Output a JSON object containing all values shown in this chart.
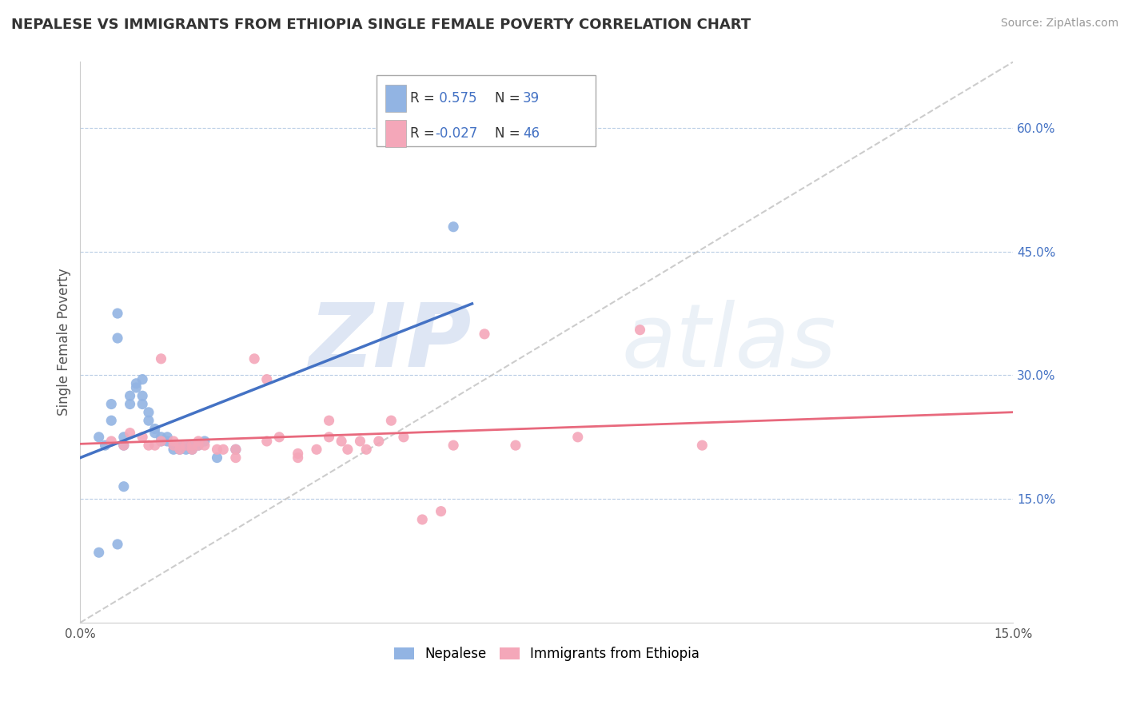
{
  "title": "NEPALESE VS IMMIGRANTS FROM ETHIOPIA SINGLE FEMALE POVERTY CORRELATION CHART",
  "source": "Source: ZipAtlas.com",
  "ylabel": "Single Female Poverty",
  "x_min": 0.0,
  "x_max": 0.15,
  "y_min": 0.0,
  "y_max": 0.68,
  "x_ticks": [
    0.0,
    0.03,
    0.06,
    0.09,
    0.12,
    0.15
  ],
  "x_tick_labels": [
    "0.0%",
    "",
    "",
    "",
    "",
    "15.0%"
  ],
  "y_tick_labels_right": [
    "15.0%",
    "30.0%",
    "45.0%",
    "60.0%"
  ],
  "y_tick_positions_right": [
    0.15,
    0.3,
    0.45,
    0.6
  ],
  "nepalese_R": "0.575",
  "nepalese_N": 39,
  "ethiopia_R": "-0.027",
  "ethiopia_N": 46,
  "nepalese_color": "#92b4e3",
  "ethiopia_color": "#f4a7b9",
  "nepalese_line_color": "#4472c4",
  "ethiopia_line_color": "#e8697d",
  "nepalese_points": [
    [
      0.003,
      0.225
    ],
    [
      0.004,
      0.215
    ],
    [
      0.005,
      0.265
    ],
    [
      0.005,
      0.245
    ],
    [
      0.006,
      0.375
    ],
    [
      0.006,
      0.345
    ],
    [
      0.007,
      0.215
    ],
    [
      0.007,
      0.225
    ],
    [
      0.008,
      0.275
    ],
    [
      0.008,
      0.265
    ],
    [
      0.009,
      0.285
    ],
    [
      0.009,
      0.29
    ],
    [
      0.01,
      0.295
    ],
    [
      0.01,
      0.275
    ],
    [
      0.01,
      0.265
    ],
    [
      0.011,
      0.255
    ],
    [
      0.011,
      0.245
    ],
    [
      0.012,
      0.235
    ],
    [
      0.012,
      0.23
    ],
    [
      0.013,
      0.225
    ],
    [
      0.013,
      0.22
    ],
    [
      0.014,
      0.225
    ],
    [
      0.014,
      0.22
    ],
    [
      0.015,
      0.215
    ],
    [
      0.015,
      0.21
    ],
    [
      0.016,
      0.215
    ],
    [
      0.016,
      0.21
    ],
    [
      0.017,
      0.215
    ],
    [
      0.017,
      0.21
    ],
    [
      0.018,
      0.215
    ],
    [
      0.018,
      0.21
    ],
    [
      0.019,
      0.215
    ],
    [
      0.02,
      0.22
    ],
    [
      0.022,
      0.2
    ],
    [
      0.025,
      0.21
    ],
    [
      0.006,
      0.095
    ],
    [
      0.007,
      0.165
    ],
    [
      0.06,
      0.48
    ],
    [
      0.003,
      0.085
    ]
  ],
  "ethiopia_points": [
    [
      0.005,
      0.22
    ],
    [
      0.007,
      0.215
    ],
    [
      0.008,
      0.23
    ],
    [
      0.01,
      0.225
    ],
    [
      0.011,
      0.215
    ],
    [
      0.012,
      0.215
    ],
    [
      0.013,
      0.22
    ],
    [
      0.013,
      0.32
    ],
    [
      0.015,
      0.22
    ],
    [
      0.015,
      0.215
    ],
    [
      0.016,
      0.215
    ],
    [
      0.016,
      0.21
    ],
    [
      0.017,
      0.215
    ],
    [
      0.018,
      0.21
    ],
    [
      0.018,
      0.215
    ],
    [
      0.019,
      0.22
    ],
    [
      0.019,
      0.215
    ],
    [
      0.02,
      0.215
    ],
    [
      0.022,
      0.21
    ],
    [
      0.023,
      0.21
    ],
    [
      0.025,
      0.2
    ],
    [
      0.025,
      0.21
    ],
    [
      0.028,
      0.32
    ],
    [
      0.03,
      0.295
    ],
    [
      0.03,
      0.22
    ],
    [
      0.032,
      0.225
    ],
    [
      0.035,
      0.2
    ],
    [
      0.035,
      0.205
    ],
    [
      0.038,
      0.21
    ],
    [
      0.04,
      0.245
    ],
    [
      0.04,
      0.225
    ],
    [
      0.042,
      0.22
    ],
    [
      0.043,
      0.21
    ],
    [
      0.045,
      0.22
    ],
    [
      0.046,
      0.21
    ],
    [
      0.048,
      0.22
    ],
    [
      0.05,
      0.245
    ],
    [
      0.052,
      0.225
    ],
    [
      0.055,
      0.125
    ],
    [
      0.058,
      0.135
    ],
    [
      0.06,
      0.215
    ],
    [
      0.065,
      0.35
    ],
    [
      0.07,
      0.215
    ],
    [
      0.08,
      0.225
    ],
    [
      0.09,
      0.355
    ],
    [
      0.1,
      0.215
    ]
  ]
}
